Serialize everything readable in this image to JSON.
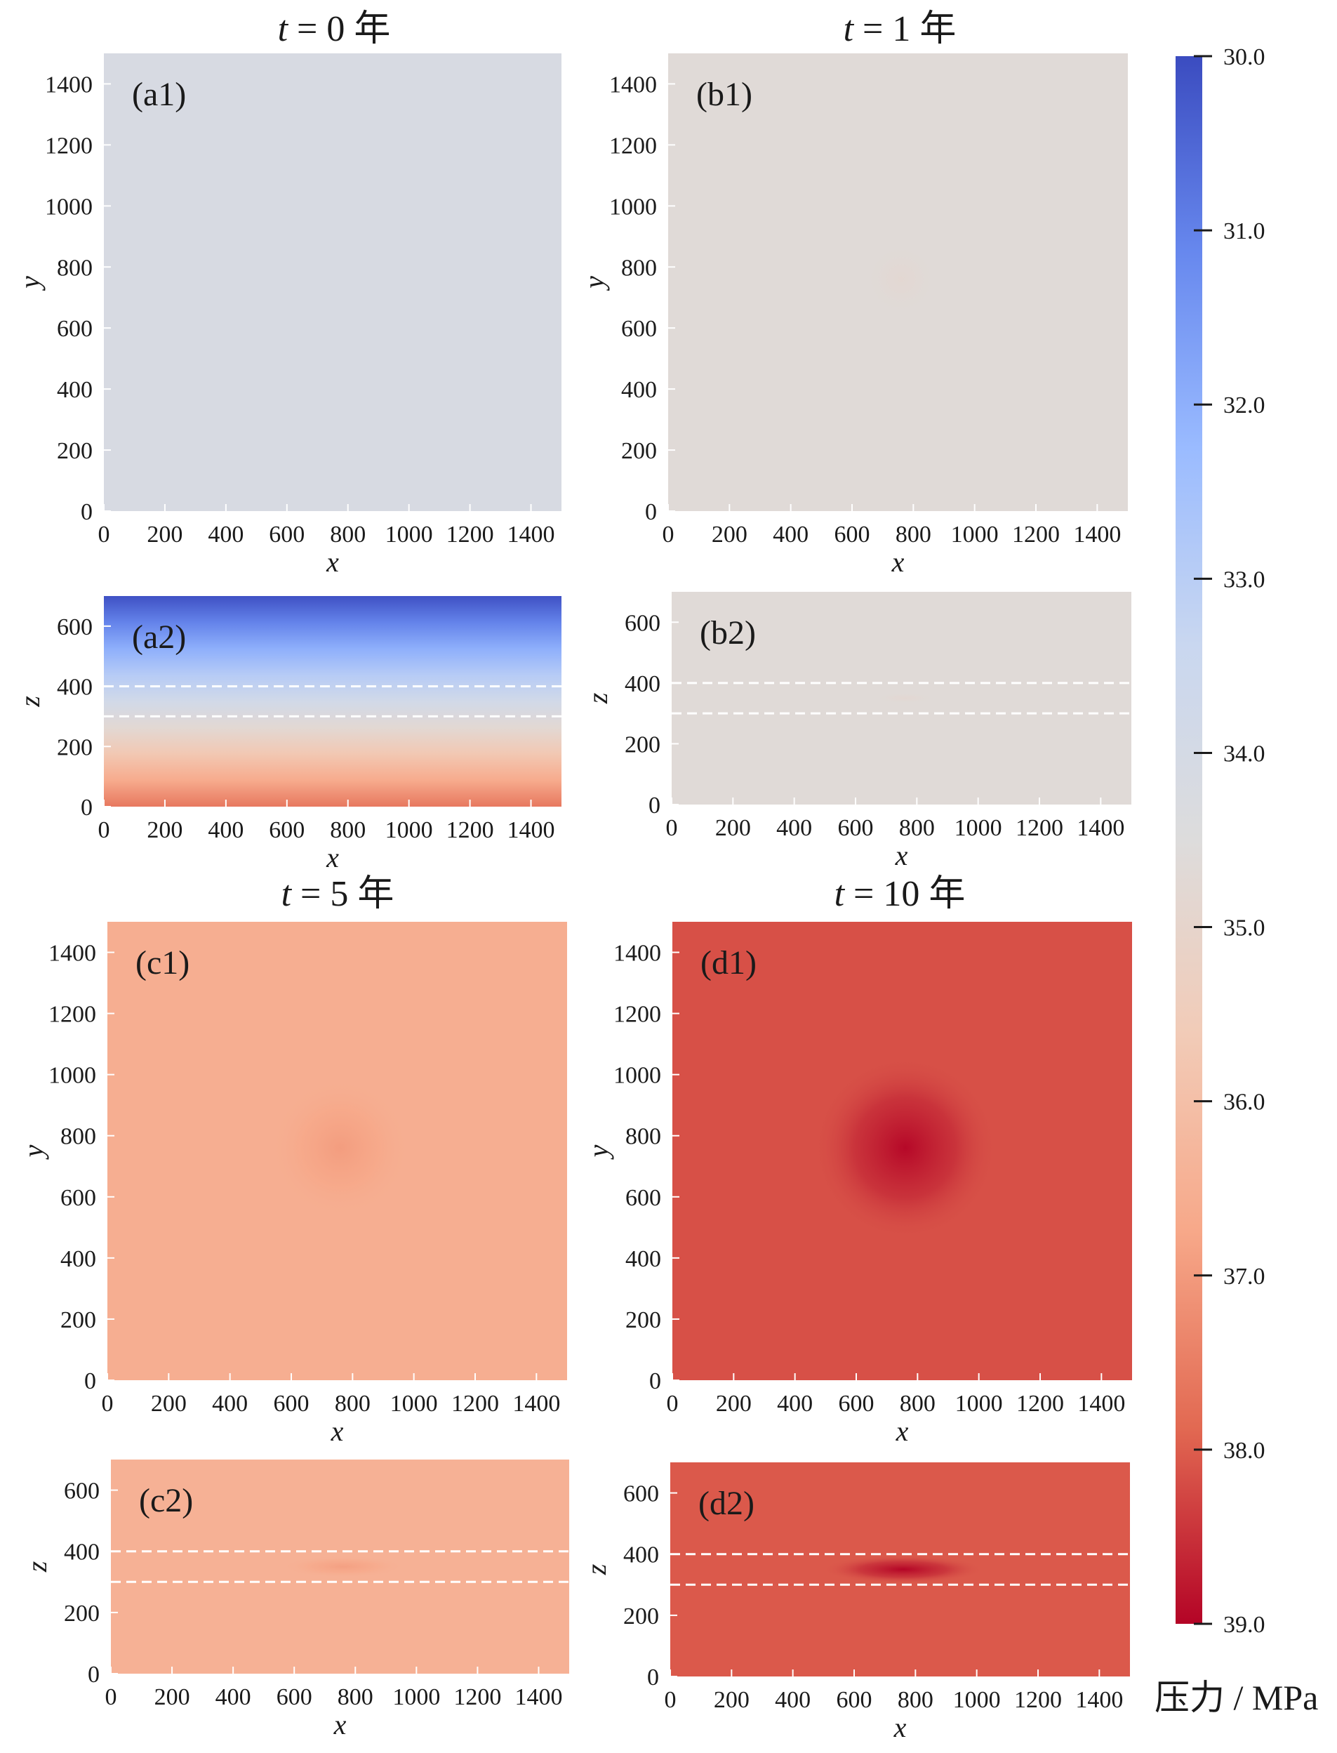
{
  "chart_data": {
    "type": "heatmap",
    "colorbar": {
      "label": "压力 / MPa",
      "min": 30.0,
      "max": 39.0,
      "ticks": [
        "30.0",
        "31.0",
        "32.0",
        "33.0",
        "34.0",
        "35.0",
        "36.0",
        "37.0",
        "38.0",
        "39.0"
      ],
      "colormap": "coolwarm",
      "colors": [
        "#3b4cc0",
        "#6788ee",
        "#9abbff",
        "#c9d7f0",
        "#dddcdc",
        "#f2cbb7",
        "#f7a889",
        "#e26952",
        "#b40426"
      ]
    },
    "columns": [
      {
        "title_var": "t",
        "title_eq": " = 0",
        "title_unit": " 年"
      },
      {
        "title_var": "t",
        "title_eq": " = 1",
        "title_unit": " 年"
      },
      {
        "title_var": "t",
        "title_eq": " = 5",
        "title_unit": " 年"
      },
      {
        "title_var": "t",
        "title_eq": " = 10",
        "title_unit": " 年"
      }
    ],
    "x_ticks": [
      "0",
      "200",
      "400",
      "600",
      "800",
      "1000",
      "1200",
      "1400"
    ],
    "y_ticks": [
      "0",
      "200",
      "400",
      "600",
      "800",
      "1000",
      "1200",
      "1400"
    ],
    "z_ticks": [
      "0",
      "200",
      "400",
      "600"
    ],
    "panels": [
      {
        "id": "a1",
        "tag": "(a1)",
        "view": "xy",
        "xlabel": "x",
        "ylabel": "y",
        "xlim": [
          0,
          1500
        ],
        "ylim": [
          0,
          1500
        ],
        "background_pressure": 34.15,
        "anomaly": {
          "center": [
            760,
            760
          ],
          "radius": 0,
          "peak_pressure": 34.15
        }
      },
      {
        "id": "a2",
        "tag": "(a2)",
        "view": "xz",
        "xlabel": "x",
        "ylabel": "z",
        "xlim": [
          0,
          1500
        ],
        "ylim": [
          0,
          700
        ],
        "vertical_gradient": {
          "top_pressure": 30.1,
          "bottom_pressure": 37.6
        },
        "layer_bounds_z": [
          300,
          400
        ]
      },
      {
        "id": "b1",
        "tag": "(b1)",
        "view": "xy",
        "xlabel": "x",
        "ylabel": "y",
        "xlim": [
          0,
          1500
        ],
        "ylim": [
          0,
          1500
        ],
        "background_pressure": 34.65,
        "anomaly": {
          "center": [
            760,
            760
          ],
          "radius": 120,
          "peak_pressure": 34.8
        }
      },
      {
        "id": "b2",
        "tag": "(b2)",
        "view": "xz",
        "xlabel": "x",
        "ylabel": "z",
        "xlim": [
          0,
          1500
        ],
        "ylim": [
          0,
          700
        ],
        "background_pressure": 34.65,
        "anomaly": {
          "center": [
            760,
            350
          ],
          "radius": 100,
          "peak_pressure": 34.8
        },
        "layer_bounds_z": [
          300,
          400
        ]
      },
      {
        "id": "c1",
        "tag": "(c1)",
        "view": "xy",
        "xlabel": "x",
        "ylabel": "y",
        "xlim": [
          0,
          1500
        ],
        "ylim": [
          0,
          1500
        ],
        "background_pressure": 36.55,
        "anomaly": {
          "center": [
            760,
            760
          ],
          "radius": 230,
          "peak_pressure": 36.95
        }
      },
      {
        "id": "c2",
        "tag": "(c2)",
        "view": "xz",
        "xlabel": "x",
        "ylabel": "z",
        "xlim": [
          0,
          1500
        ],
        "ylim": [
          0,
          700
        ],
        "background_pressure": 36.45,
        "anomaly": {
          "center": [
            760,
            350
          ],
          "radius": 200,
          "peak_pressure": 36.9
        },
        "layer_bounds_z": [
          300,
          400
        ]
      },
      {
        "id": "d1",
        "tag": "(d1)",
        "view": "xy",
        "xlabel": "x",
        "ylabel": "y",
        "xlim": [
          0,
          1500
        ],
        "ylim": [
          0,
          1500
        ],
        "background_pressure": 38.15,
        "anomaly": {
          "center": [
            760,
            760
          ],
          "radius": 300,
          "peak_pressure": 38.95
        }
      },
      {
        "id": "d2",
        "tag": "(d2)",
        "view": "xz",
        "xlabel": "x",
        "ylabel": "z",
        "xlim": [
          0,
          1500
        ],
        "ylim": [
          0,
          700
        ],
        "background_pressure": 38.05,
        "anomaly": {
          "center": [
            760,
            350
          ],
          "radius": 260,
          "peak_pressure": 39.0
        },
        "layer_bounds_z": [
          300,
          400
        ]
      }
    ]
  }
}
